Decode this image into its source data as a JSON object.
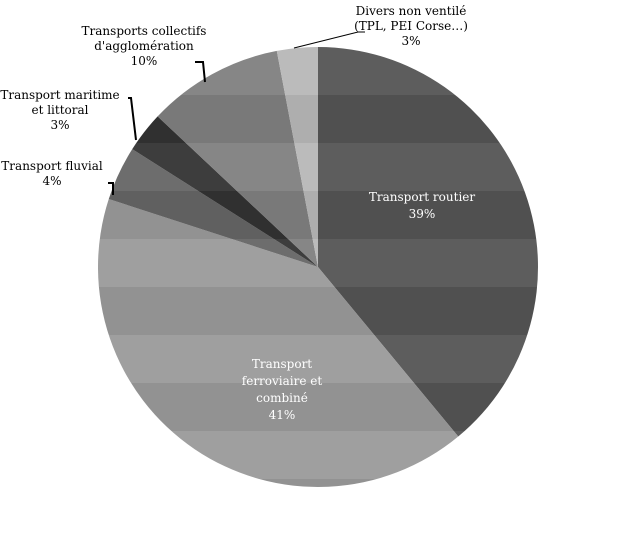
{
  "chart_data": {
    "type": "pie",
    "start": "12 o'clock",
    "direction": "clockwise",
    "slices": [
      {
        "label": "Transport routier",
        "pct_label": "39%",
        "value": 39,
        "color": "#555555",
        "label_inside": true
      },
      {
        "label": "Transport ferroviaire et combiné",
        "pct_label": "41%",
        "value": 41,
        "color": "#9a9a9a",
        "label_inside": true
      },
      {
        "label": "Transport fluvial",
        "pct_label": "4%",
        "value": 4,
        "color": "#666666",
        "label_inside": false
      },
      {
        "label": "Transport maritime et littoral",
        "pct_label": "3%",
        "value": 3,
        "color": "#333333",
        "label_inside": false
      },
      {
        "label": "Transports collectifs d'agglomération",
        "pct_label": "10%",
        "value": 10,
        "color": "#808080",
        "label_inside": false
      },
      {
        "label": "Divers non ventilé (TPL, PEI Corse…)",
        "pct_label": "3%",
        "value": 3,
        "color": "#b8b8b8",
        "label_inside": false
      }
    ],
    "label_lines": [
      [
        "Transport routier",
        "39%"
      ],
      [
        "Transport",
        "ferroviaire et",
        "combiné",
        "41%"
      ],
      [
        "Transport fluvial",
        "4%"
      ],
      [
        "Transport maritime",
        "et littoral",
        "3%"
      ],
      [
        "Transports collectifs",
        "d'agglomération",
        "10%"
      ],
      [
        "Divers non ventilé",
        "(TPL, PEI Corse…)",
        "3%"
      ]
    ]
  }
}
